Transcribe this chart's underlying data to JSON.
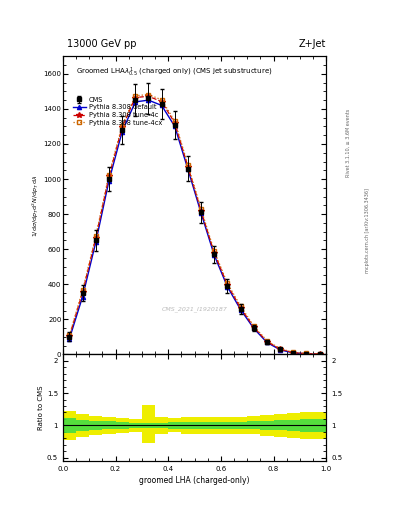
{
  "title_top": "13000 GeV pp",
  "title_right": "Z+Jet",
  "plot_title": "Groomed LHA$\\lambda^{1}_{0.5}$ (charged only) (CMS jet substructure)",
  "xlabel": "groomed LHA (charged-only)",
  "ylabel_main": "$\\frac{1}{\\mathrm{d}\\sigma/\\mathrm{d}p_T}\\frac{\\mathrm{d}^2\\mathrm{N}}{\\mathrm{d}p_T\\,\\mathrm{d}\\lambda}$",
  "ylabel_ratio": "Ratio to CMS",
  "watermark": "CMS_2021_I1920187",
  "rivet_label": "Rivet 3.1.10, ≥ 3.6M events",
  "mcplots_label": "mcplots.cern.ch [arXiv:1306.3436]",
  "x_values": [
    0.025,
    0.075,
    0.125,
    0.175,
    0.225,
    0.275,
    0.325,
    0.375,
    0.425,
    0.475,
    0.525,
    0.575,
    0.625,
    0.675,
    0.725,
    0.775,
    0.825,
    0.875,
    0.925,
    0.975
  ],
  "cms_data": [
    100,
    350,
    650,
    1000,
    1280,
    1450,
    1460,
    1430,
    1310,
    1060,
    810,
    570,
    390,
    260,
    150,
    70,
    28,
    9,
    4,
    2
  ],
  "cms_errors": [
    25,
    45,
    60,
    70,
    80,
    90,
    90,
    85,
    80,
    70,
    60,
    50,
    38,
    28,
    18,
    12,
    8,
    4,
    2,
    1
  ],
  "pythia_default": [
    90,
    330,
    640,
    990,
    1270,
    1440,
    1450,
    1420,
    1300,
    1055,
    805,
    565,
    385,
    255,
    148,
    68,
    26,
    8,
    3,
    1
  ],
  "pythia_4c": [
    105,
    355,
    665,
    1015,
    1295,
    1465,
    1472,
    1442,
    1320,
    1070,
    818,
    578,
    395,
    265,
    155,
    73,
    30,
    10,
    4,
    2
  ],
  "pythia_4cx": [
    110,
    365,
    675,
    1025,
    1305,
    1475,
    1482,
    1452,
    1330,
    1080,
    828,
    588,
    405,
    275,
    162,
    78,
    33,
    11,
    5,
    2
  ],
  "ratio_green_lo": [
    0.88,
    0.91,
    0.93,
    0.94,
    0.95,
    0.96,
    0.96,
    0.96,
    0.95,
    0.95,
    0.95,
    0.95,
    0.95,
    0.95,
    0.94,
    0.93,
    0.92,
    0.91,
    0.9,
    0.9
  ],
  "ratio_green_hi": [
    1.12,
    1.09,
    1.07,
    1.06,
    1.05,
    1.04,
    1.04,
    1.04,
    1.05,
    1.05,
    1.05,
    1.05,
    1.05,
    1.05,
    1.06,
    1.07,
    1.08,
    1.09,
    1.1,
    1.1
  ],
  "ratio_yellow_lo": [
    0.78,
    0.82,
    0.85,
    0.87,
    0.88,
    0.9,
    0.72,
    0.87,
    0.89,
    0.87,
    0.87,
    0.87,
    0.87,
    0.87,
    0.86,
    0.84,
    0.82,
    0.81,
    0.79,
    0.79
  ],
  "ratio_yellow_hi": [
    1.22,
    1.18,
    1.15,
    1.13,
    1.12,
    1.1,
    1.32,
    1.13,
    1.11,
    1.13,
    1.13,
    1.13,
    1.13,
    1.13,
    1.14,
    1.16,
    1.18,
    1.19,
    1.21,
    1.21
  ],
  "cms_color": "#000000",
  "pythia_default_color": "#0000cc",
  "pythia_4c_color": "#cc0000",
  "pythia_4cx_color": "#cc6600",
  "green_band_color": "#44dd44",
  "yellow_band_color": "#eeee00",
  "ylim_main": [
    0,
    1700
  ],
  "ylim_ratio": [
    0.45,
    2.1
  ],
  "background_color": "#ffffff"
}
